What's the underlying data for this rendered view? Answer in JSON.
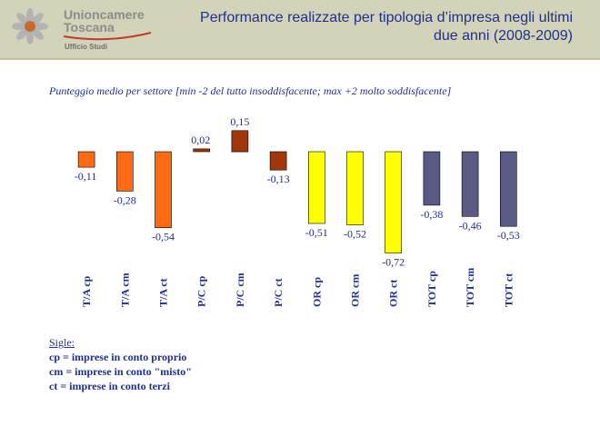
{
  "header": {
    "org_name": "Unioncamere Toscana",
    "org_sub": "Ufficio Studi",
    "title": "Performance realizzate per tipologia d’impresa negli ultimi due anni (2008-2009)"
  },
  "colors": {
    "header_bg": "#d3d3b9",
    "title": "#1f2f8f",
    "text": "#1f2f8f",
    "orange": "#ff6a13",
    "brown": "#a0360a",
    "yellow": "#ffff00",
    "slate": "#5a5a84"
  },
  "chart_data": {
    "type": "bar",
    "title": "Punteggio medio per settore [min -2 del tutto insoddisfacente; max +2 molto soddisfacente]",
    "categories": [
      "T/A cp",
      "T/A cm",
      "T/A ct",
      "P/C cp",
      "P/C cm",
      "P/C ct",
      "OR cp",
      "OR cm",
      "OR ct",
      "TOT cp",
      "TOT cm",
      "TOT ct"
    ],
    "values": [
      -0.11,
      -0.28,
      -0.54,
      0.02,
      0.15,
      -0.13,
      -0.51,
      -0.52,
      -0.72,
      -0.38,
      -0.46,
      -0.53
    ],
    "labels": [
      "-0,11",
      "-0,28",
      "-0,54",
      "0,02",
      "0,15",
      "-0,13",
      "-0,51",
      "-0,52",
      "-0,72",
      "-0,38",
      "-0,46",
      "-0,53"
    ],
    "bar_colors": [
      "#ff6a13",
      "#ff6a13",
      "#ff6a13",
      "#a0360a",
      "#a0360a",
      "#a0360a",
      "#ffff00",
      "#ffff00",
      "#ffff00",
      "#5a5a84",
      "#5a5a84",
      "#5a5a84"
    ],
    "ylim": [
      -0.8,
      0.2
    ],
    "grid": false
  },
  "legend": {
    "title": "Sigle:",
    "items": [
      "cp = imprese in conto proprio",
      "cm = imprese in conto \"misto\"",
      "ct = imprese in conto terzi"
    ]
  }
}
